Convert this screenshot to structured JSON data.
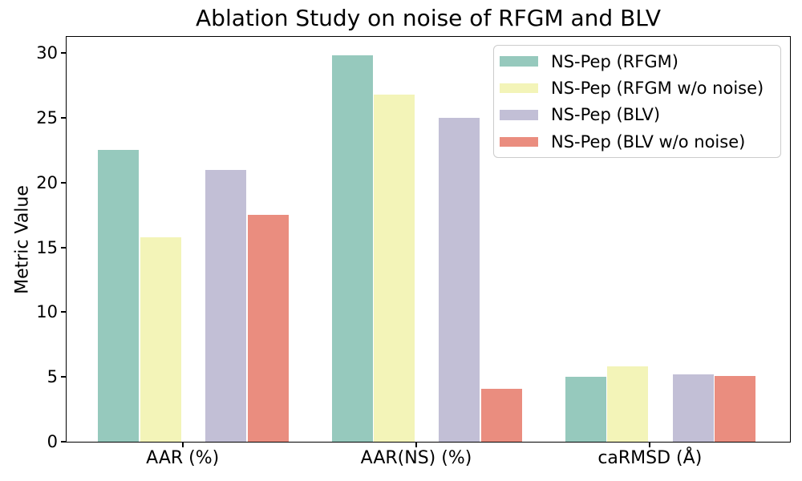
{
  "chart_data": {
    "type": "bar",
    "title": "Ablation Study on noise of RFGM and BLV",
    "ylabel": "Metric Value",
    "xlabel": "",
    "categories": [
      "AAR (%)",
      "AAR(NS) (%)",
      "caRMSD (Å)"
    ],
    "series": [
      {
        "name": "NS-Pep (RFGM)",
        "color": "#96c9bd",
        "values": [
          22.5,
          29.8,
          5.0
        ]
      },
      {
        "name": "NS-Pep (RFGM w/o noise)",
        "color": "#f3f4b8",
        "values": [
          15.8,
          26.8,
          5.8
        ]
      },
      {
        "name": "NS-Pep (BLV)",
        "color": "#c2bfd6",
        "values": [
          21.0,
          25.0,
          5.2
        ]
      },
      {
        "name": "NS-Pep (BLV w/o noise)",
        "color": "#ea8d7f",
        "values": [
          17.5,
          4.1,
          5.1
        ]
      }
    ],
    "yticks": [
      0,
      5,
      10,
      15,
      20,
      25,
      30
    ],
    "ylim": [
      0,
      31.3
    ],
    "grid": false,
    "legend_position": "upper right",
    "background_color": "#ffffff",
    "axis_color": "#000000"
  }
}
